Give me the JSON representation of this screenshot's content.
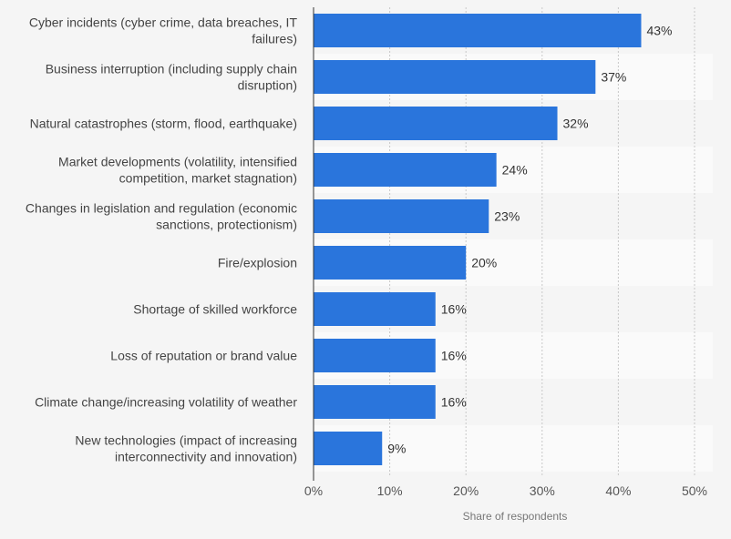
{
  "chart_data": {
    "type": "bar",
    "orientation": "horizontal",
    "categories": [
      [
        "Cyber incidents (cyber crime, data breaches, IT",
        "failures)"
      ],
      [
        "Business interruption (including supply chain",
        "disruption)"
      ],
      [
        "Natural catastrophes (storm, flood, earthquake)"
      ],
      [
        "Market developments (volatility, intensified",
        "competition, market stagnation)"
      ],
      [
        "Changes in legislation and regulation (economic",
        "sanctions, protectionism)"
      ],
      [
        "Fire/explosion"
      ],
      [
        "Shortage of skilled workforce"
      ],
      [
        "Loss of reputation or brand value"
      ],
      [
        "Climate change/increasing volatility of weather"
      ],
      [
        "New technologies (impact of increasing",
        "interconnectivity and innovation)"
      ]
    ],
    "values": [
      43,
      37,
      32,
      24,
      23,
      20,
      16,
      16,
      16,
      9
    ],
    "value_labels": [
      "43%",
      "37%",
      "32%",
      "24%",
      "23%",
      "20%",
      "16%",
      "16%",
      "16%",
      "9%"
    ],
    "xlim": [
      0,
      50
    ],
    "x_ticks": [
      0,
      10,
      20,
      30,
      40,
      50
    ],
    "x_tick_labels": [
      "0%",
      "10%",
      "20%",
      "30%",
      "40%",
      "50%"
    ],
    "xlabel": "Share of respondents",
    "ylabel": "",
    "title": "",
    "grid": true,
    "bar_color": "#2a75dc",
    "band_colors": [
      "#f5f5f5",
      "#fafafa"
    ],
    "grid_color": "#c8c8c8"
  }
}
